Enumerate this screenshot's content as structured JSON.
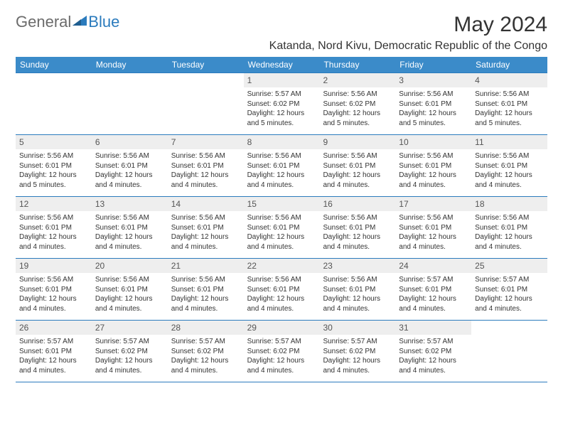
{
  "logo": {
    "text1": "General",
    "text2": "Blue",
    "text1_color": "#6b6b6b",
    "text2_color": "#2b7bbd",
    "triangle_color": "#2b7bbd"
  },
  "title": "May 2024",
  "location": "Katanda, Nord Kivu, Democratic Republic of the Congo",
  "colors": {
    "header_bg": "#3b8bc9",
    "header_text": "#ffffff",
    "border": "#2b7bbd",
    "daynum_bg": "#eeeeee",
    "text": "#333333"
  },
  "day_headers": [
    "Sunday",
    "Monday",
    "Tuesday",
    "Wednesday",
    "Thursday",
    "Friday",
    "Saturday"
  ],
  "weeks": [
    [
      {
        "empty": true
      },
      {
        "empty": true
      },
      {
        "empty": true
      },
      {
        "num": "1",
        "sunrise": "Sunrise: 5:57 AM",
        "sunset": "Sunset: 6:02 PM",
        "daylight1": "Daylight: 12 hours",
        "daylight2": "and 5 minutes."
      },
      {
        "num": "2",
        "sunrise": "Sunrise: 5:56 AM",
        "sunset": "Sunset: 6:02 PM",
        "daylight1": "Daylight: 12 hours",
        "daylight2": "and 5 minutes."
      },
      {
        "num": "3",
        "sunrise": "Sunrise: 5:56 AM",
        "sunset": "Sunset: 6:01 PM",
        "daylight1": "Daylight: 12 hours",
        "daylight2": "and 5 minutes."
      },
      {
        "num": "4",
        "sunrise": "Sunrise: 5:56 AM",
        "sunset": "Sunset: 6:01 PM",
        "daylight1": "Daylight: 12 hours",
        "daylight2": "and 5 minutes."
      }
    ],
    [
      {
        "num": "5",
        "sunrise": "Sunrise: 5:56 AM",
        "sunset": "Sunset: 6:01 PM",
        "daylight1": "Daylight: 12 hours",
        "daylight2": "and 5 minutes."
      },
      {
        "num": "6",
        "sunrise": "Sunrise: 5:56 AM",
        "sunset": "Sunset: 6:01 PM",
        "daylight1": "Daylight: 12 hours",
        "daylight2": "and 4 minutes."
      },
      {
        "num": "7",
        "sunrise": "Sunrise: 5:56 AM",
        "sunset": "Sunset: 6:01 PM",
        "daylight1": "Daylight: 12 hours",
        "daylight2": "and 4 minutes."
      },
      {
        "num": "8",
        "sunrise": "Sunrise: 5:56 AM",
        "sunset": "Sunset: 6:01 PM",
        "daylight1": "Daylight: 12 hours",
        "daylight2": "and 4 minutes."
      },
      {
        "num": "9",
        "sunrise": "Sunrise: 5:56 AM",
        "sunset": "Sunset: 6:01 PM",
        "daylight1": "Daylight: 12 hours",
        "daylight2": "and 4 minutes."
      },
      {
        "num": "10",
        "sunrise": "Sunrise: 5:56 AM",
        "sunset": "Sunset: 6:01 PM",
        "daylight1": "Daylight: 12 hours",
        "daylight2": "and 4 minutes."
      },
      {
        "num": "11",
        "sunrise": "Sunrise: 5:56 AM",
        "sunset": "Sunset: 6:01 PM",
        "daylight1": "Daylight: 12 hours",
        "daylight2": "and 4 minutes."
      }
    ],
    [
      {
        "num": "12",
        "sunrise": "Sunrise: 5:56 AM",
        "sunset": "Sunset: 6:01 PM",
        "daylight1": "Daylight: 12 hours",
        "daylight2": "and 4 minutes."
      },
      {
        "num": "13",
        "sunrise": "Sunrise: 5:56 AM",
        "sunset": "Sunset: 6:01 PM",
        "daylight1": "Daylight: 12 hours",
        "daylight2": "and 4 minutes."
      },
      {
        "num": "14",
        "sunrise": "Sunrise: 5:56 AM",
        "sunset": "Sunset: 6:01 PM",
        "daylight1": "Daylight: 12 hours",
        "daylight2": "and 4 minutes."
      },
      {
        "num": "15",
        "sunrise": "Sunrise: 5:56 AM",
        "sunset": "Sunset: 6:01 PM",
        "daylight1": "Daylight: 12 hours",
        "daylight2": "and 4 minutes."
      },
      {
        "num": "16",
        "sunrise": "Sunrise: 5:56 AM",
        "sunset": "Sunset: 6:01 PM",
        "daylight1": "Daylight: 12 hours",
        "daylight2": "and 4 minutes."
      },
      {
        "num": "17",
        "sunrise": "Sunrise: 5:56 AM",
        "sunset": "Sunset: 6:01 PM",
        "daylight1": "Daylight: 12 hours",
        "daylight2": "and 4 minutes."
      },
      {
        "num": "18",
        "sunrise": "Sunrise: 5:56 AM",
        "sunset": "Sunset: 6:01 PM",
        "daylight1": "Daylight: 12 hours",
        "daylight2": "and 4 minutes."
      }
    ],
    [
      {
        "num": "19",
        "sunrise": "Sunrise: 5:56 AM",
        "sunset": "Sunset: 6:01 PM",
        "daylight1": "Daylight: 12 hours",
        "daylight2": "and 4 minutes."
      },
      {
        "num": "20",
        "sunrise": "Sunrise: 5:56 AM",
        "sunset": "Sunset: 6:01 PM",
        "daylight1": "Daylight: 12 hours",
        "daylight2": "and 4 minutes."
      },
      {
        "num": "21",
        "sunrise": "Sunrise: 5:56 AM",
        "sunset": "Sunset: 6:01 PM",
        "daylight1": "Daylight: 12 hours",
        "daylight2": "and 4 minutes."
      },
      {
        "num": "22",
        "sunrise": "Sunrise: 5:56 AM",
        "sunset": "Sunset: 6:01 PM",
        "daylight1": "Daylight: 12 hours",
        "daylight2": "and 4 minutes."
      },
      {
        "num": "23",
        "sunrise": "Sunrise: 5:56 AM",
        "sunset": "Sunset: 6:01 PM",
        "daylight1": "Daylight: 12 hours",
        "daylight2": "and 4 minutes."
      },
      {
        "num": "24",
        "sunrise": "Sunrise: 5:57 AM",
        "sunset": "Sunset: 6:01 PM",
        "daylight1": "Daylight: 12 hours",
        "daylight2": "and 4 minutes."
      },
      {
        "num": "25",
        "sunrise": "Sunrise: 5:57 AM",
        "sunset": "Sunset: 6:01 PM",
        "daylight1": "Daylight: 12 hours",
        "daylight2": "and 4 minutes."
      }
    ],
    [
      {
        "num": "26",
        "sunrise": "Sunrise: 5:57 AM",
        "sunset": "Sunset: 6:01 PM",
        "daylight1": "Daylight: 12 hours",
        "daylight2": "and 4 minutes."
      },
      {
        "num": "27",
        "sunrise": "Sunrise: 5:57 AM",
        "sunset": "Sunset: 6:02 PM",
        "daylight1": "Daylight: 12 hours",
        "daylight2": "and 4 minutes."
      },
      {
        "num": "28",
        "sunrise": "Sunrise: 5:57 AM",
        "sunset": "Sunset: 6:02 PM",
        "daylight1": "Daylight: 12 hours",
        "daylight2": "and 4 minutes."
      },
      {
        "num": "29",
        "sunrise": "Sunrise: 5:57 AM",
        "sunset": "Sunset: 6:02 PM",
        "daylight1": "Daylight: 12 hours",
        "daylight2": "and 4 minutes."
      },
      {
        "num": "30",
        "sunrise": "Sunrise: 5:57 AM",
        "sunset": "Sunset: 6:02 PM",
        "daylight1": "Daylight: 12 hours",
        "daylight2": "and 4 minutes."
      },
      {
        "num": "31",
        "sunrise": "Sunrise: 5:57 AM",
        "sunset": "Sunset: 6:02 PM",
        "daylight1": "Daylight: 12 hours",
        "daylight2": "and 4 minutes."
      },
      {
        "empty": true
      }
    ]
  ]
}
